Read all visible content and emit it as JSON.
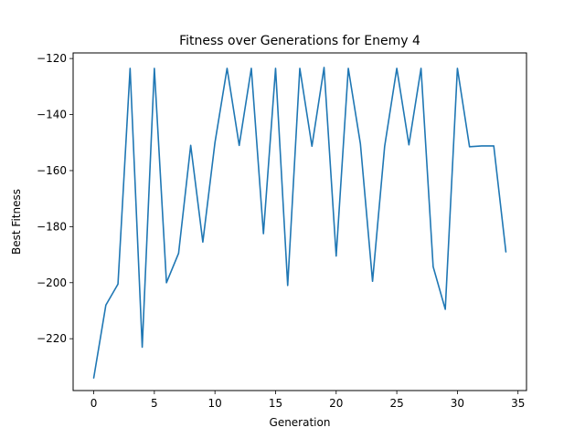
{
  "chart_data": {
    "type": "line",
    "title": "Fitness over Generations for Enemy 4",
    "xlabel": "Generation",
    "ylabel": "Best Fitness",
    "xlim": [
      -1.7,
      35.7
    ],
    "ylim": [
      -238.5,
      -118
    ],
    "xticks": [
      0,
      5,
      10,
      15,
      20,
      25,
      30,
      35
    ],
    "yticks": [
      -220,
      -200,
      -180,
      -160,
      -140,
      -120
    ],
    "grid": false,
    "line_color": "#1f77b4",
    "series": [
      {
        "x": [
          0,
          1,
          2,
          3,
          4,
          5,
          6,
          7,
          8,
          9,
          10,
          11,
          12,
          13,
          14,
          15,
          16,
          17,
          18,
          19,
          20,
          21,
          22,
          23,
          24,
          25,
          26,
          27,
          28,
          29,
          30,
          31,
          32,
          33,
          34
        ],
        "values": [
          -234,
          -208,
          -200.5,
          -123.5,
          -223,
          -123.5,
          -200,
          -189.5,
          -151,
          -185.5,
          -150,
          -123.5,
          -151,
          -123.5,
          -182.5,
          -123.5,
          -201,
          -123.5,
          -151.3,
          -123.2,
          -190.5,
          -123.5,
          -150.5,
          -199.5,
          -151.3,
          -123.5,
          -150.8,
          -123.5,
          -194.3,
          -209.5,
          -123.5,
          -151.5,
          -151.2,
          -151.2,
          -189
        ]
      }
    ]
  }
}
